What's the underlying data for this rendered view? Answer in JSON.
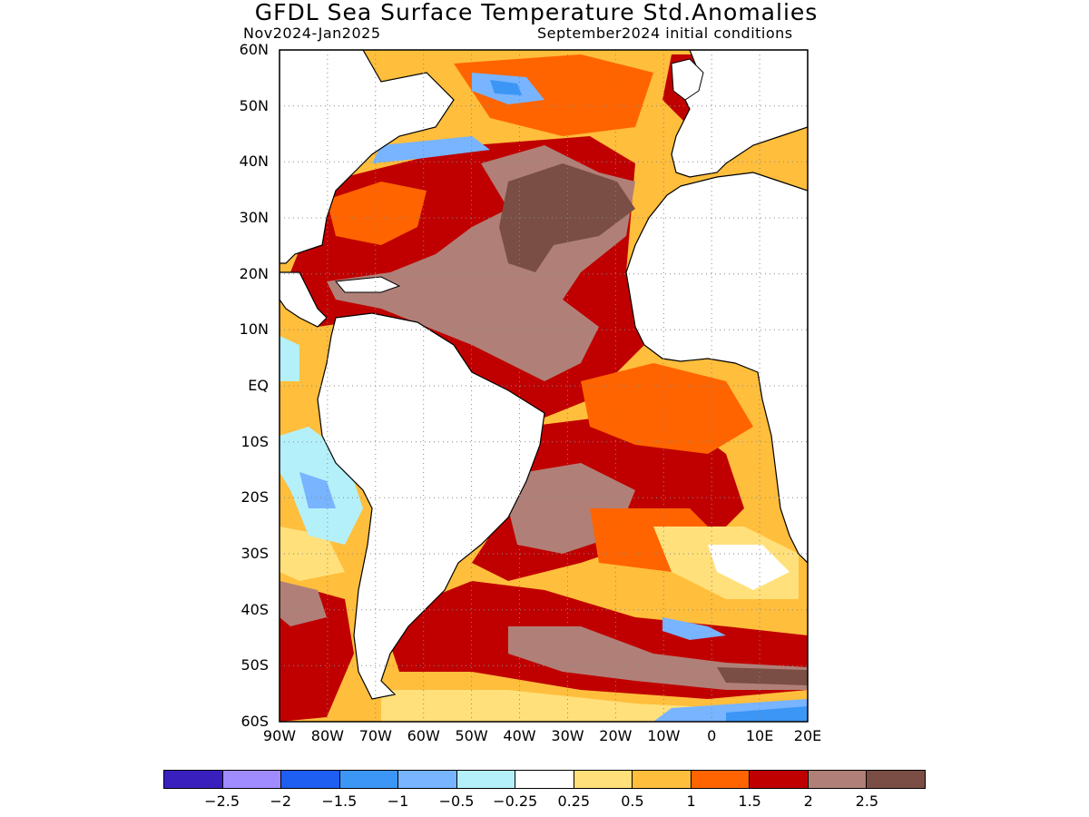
{
  "title": "GFDL Sea Surface Temperature Std.Anomalies",
  "subtitle_left": "Nov2024-Jan2025",
  "subtitle_right": "September2024 initial conditions",
  "lat_labels": [
    "60N",
    "50N",
    "40N",
    "30N",
    "20N",
    "10N",
    "EQ",
    "10S",
    "20S",
    "30S",
    "40S",
    "50S",
    "60S"
  ],
  "lon_labels": [
    "90W",
    "80W",
    "70W",
    "60W",
    "50W",
    "40W",
    "30W",
    "20W",
    "10W",
    "0",
    "10E",
    "20E"
  ],
  "colorbar": {
    "colors": [
      "#3a1fbf",
      "#a08cff",
      "#1e5ef0",
      "#3c96f5",
      "#78b4ff",
      "#b4f0fa",
      "#ffffff",
      "#ffe07a",
      "#ffbe3c",
      "#ff6400",
      "#c00000",
      "#b08078",
      "#7a4e44"
    ],
    "labels": [
      "−2.5",
      "−2",
      "−1.5",
      "−1",
      "−0.5",
      "−0.25",
      "0.25",
      "0.5",
      "1",
      "1.5",
      "2",
      "2.5"
    ]
  },
  "map": {
    "region": {
      "lon_range": [
        -90,
        20
      ],
      "lat_range": [
        -60,
        60
      ]
    },
    "anomaly_regions": [
      {
        "name": "n-atlantic-gyre",
        "category": "2.5",
        "approx_center": [
          -35,
          25
        ]
      },
      {
        "name": "s-atlantic-central",
        "category": "2.5",
        "approx_center": [
          -25,
          -25
        ]
      },
      {
        "name": "southern-ocean-band",
        "category": "2.5",
        "approx_center": [
          -20,
          -47
        ]
      },
      {
        "name": "ne-pacific-cold",
        "category": "-1",
        "approx_center": [
          -45,
          52
        ]
      },
      {
        "name": "se-pacific-cool",
        "category": "-0.5",
        "approx_center": [
          -85,
          -20
        ]
      },
      {
        "name": "far-south-cold",
        "category": "-1.5",
        "approx_center": [
          10,
          -58
        ]
      }
    ]
  }
}
